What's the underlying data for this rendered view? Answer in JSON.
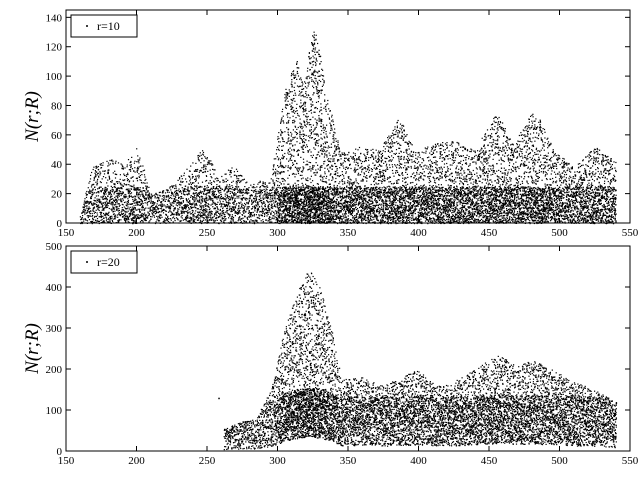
{
  "chart_data": [
    {
      "type": "scatter",
      "title": "",
      "xlabel": "",
      "ylabel": "N(r;R)",
      "xlim": [
        150,
        550
      ],
      "ylim": [
        0,
        145
      ],
      "x_ticks": [
        150,
        200,
        250,
        300,
        350,
        400,
        450,
        500,
        550
      ],
      "y_ticks": [
        0,
        20,
        40,
        60,
        80,
        100,
        120,
        140
      ],
      "grid": false,
      "legend_position": "top-left",
      "series": [
        {
          "name": "r=10",
          "color": "#000000",
          "marker": "dot",
          "x_range": [
            160,
            540
          ],
          "envelope": [
            {
              "x": 160,
              "y": 5
            },
            {
              "x": 168,
              "y": 38
            },
            {
              "x": 180,
              "y": 44
            },
            {
              "x": 192,
              "y": 40
            },
            {
              "x": 200,
              "y": 54
            },
            {
              "x": 210,
              "y": 20
            },
            {
              "x": 222,
              "y": 24
            },
            {
              "x": 232,
              "y": 33
            },
            {
              "x": 248,
              "y": 54
            },
            {
              "x": 258,
              "y": 30
            },
            {
              "x": 268,
              "y": 40
            },
            {
              "x": 280,
              "y": 26
            },
            {
              "x": 295,
              "y": 32
            },
            {
              "x": 305,
              "y": 90
            },
            {
              "x": 313,
              "y": 112
            },
            {
              "x": 318,
              "y": 95
            },
            {
              "x": 326,
              "y": 138
            },
            {
              "x": 334,
              "y": 90
            },
            {
              "x": 345,
              "y": 48
            },
            {
              "x": 358,
              "y": 52
            },
            {
              "x": 372,
              "y": 50
            },
            {
              "x": 386,
              "y": 72
            },
            {
              "x": 398,
              "y": 48
            },
            {
              "x": 410,
              "y": 55
            },
            {
              "x": 425,
              "y": 56
            },
            {
              "x": 440,
              "y": 50
            },
            {
              "x": 455,
              "y": 75
            },
            {
              "x": 468,
              "y": 55
            },
            {
              "x": 482,
              "y": 78
            },
            {
              "x": 495,
              "y": 52
            },
            {
              "x": 510,
              "y": 38
            },
            {
              "x": 525,
              "y": 52
            },
            {
              "x": 540,
              "y": 42
            }
          ]
        }
      ]
    },
    {
      "type": "scatter",
      "title": "",
      "xlabel": "",
      "ylabel": "N(r;R)",
      "xlim": [
        150,
        550
      ],
      "ylim": [
        0,
        500
      ],
      "x_ticks": [
        150,
        200,
        250,
        300,
        350,
        400,
        450,
        500,
        550
      ],
      "y_ticks": [
        0,
        100,
        200,
        300,
        400,
        500
      ],
      "grid": false,
      "legend_position": "top-left",
      "series": [
        {
          "name": "r=20",
          "color": "#000000",
          "marker": "dot",
          "x_range": [
            262,
            540
          ],
          "envelope": [
            {
              "x": 262,
              "y": 55
            },
            {
              "x": 272,
              "y": 70
            },
            {
              "x": 285,
              "y": 80
            },
            {
              "x": 295,
              "y": 150
            },
            {
              "x": 305,
              "y": 300
            },
            {
              "x": 315,
              "y": 400
            },
            {
              "x": 322,
              "y": 445
            },
            {
              "x": 330,
              "y": 400
            },
            {
              "x": 338,
              "y": 300
            },
            {
              "x": 345,
              "y": 175
            },
            {
              "x": 360,
              "y": 180
            },
            {
              "x": 375,
              "y": 160
            },
            {
              "x": 390,
              "y": 185
            },
            {
              "x": 400,
              "y": 200
            },
            {
              "x": 412,
              "y": 160
            },
            {
              "x": 425,
              "y": 170
            },
            {
              "x": 440,
              "y": 200
            },
            {
              "x": 455,
              "y": 235
            },
            {
              "x": 468,
              "y": 215
            },
            {
              "x": 482,
              "y": 220
            },
            {
              "x": 495,
              "y": 200
            },
            {
              "x": 510,
              "y": 170
            },
            {
              "x": 525,
              "y": 150
            },
            {
              "x": 540,
              "y": 120
            }
          ],
          "isolated_points": [
            {
              "x": 258,
              "y": 130
            }
          ]
        }
      ]
    }
  ]
}
